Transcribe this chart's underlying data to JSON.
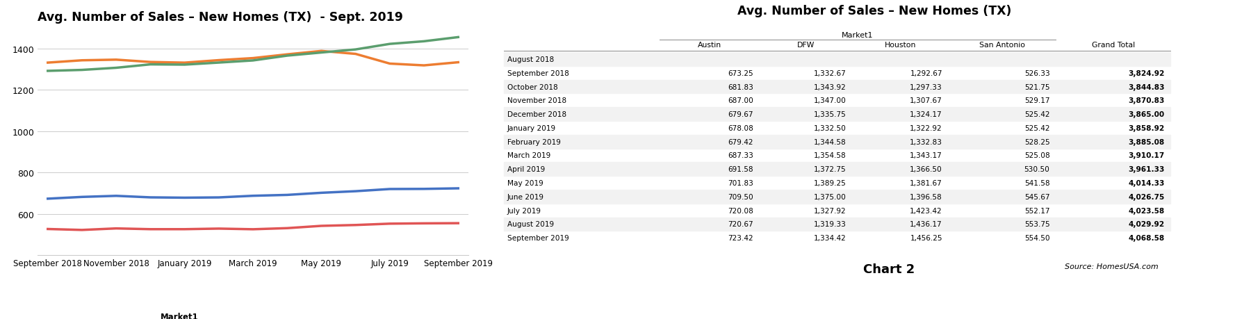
{
  "chart_title": "Avg. Number of Sales – New Homes (TX)  - Sept. 2019",
  "table_title": "Avg. Number of Sales – New Homes (TX)",
  "months": [
    "September 2018",
    "October 2018",
    "November 2018",
    "December 2018",
    "January 2019",
    "February 2019",
    "March 2019",
    "April 2019",
    "May 2019",
    "June 2019",
    "July 2019",
    "August 2019",
    "September 2019"
  ],
  "x_tick_labels": [
    "September 2018",
    "November 2018",
    "January 2019",
    "March 2019",
    "May 2019",
    "July 2019",
    "September 2019"
  ],
  "austin": [
    673.25,
    681.83,
    687.0,
    679.67,
    678.08,
    679.42,
    687.33,
    691.58,
    701.83,
    709.5,
    720.08,
    720.67,
    723.42
  ],
  "dfw": [
    1332.67,
    1343.92,
    1347.0,
    1335.75,
    1332.5,
    1344.58,
    1354.58,
    1372.75,
    1389.25,
    1375.0,
    1327.92,
    1319.33,
    1334.42
  ],
  "houston": [
    1292.67,
    1297.33,
    1307.67,
    1324.17,
    1322.92,
    1332.83,
    1343.17,
    1366.5,
    1381.67,
    1396.58,
    1423.42,
    1436.17,
    1456.25
  ],
  "san_antonio": [
    526.33,
    521.75,
    529.17,
    525.42,
    525.42,
    528.25,
    525.08,
    530.5,
    541.58,
    545.67,
    552.17,
    553.75,
    554.5
  ],
  "austin_color": "#4472C4",
  "dfw_color": "#ED7D31",
  "houston_color": "#5B9E6E",
  "san_antonio_color": "#E05555",
  "ylim": [
    400,
    1500
  ],
  "yticks": [
    600,
    800,
    1000,
    1200,
    1400
  ],
  "line_width": 2.5,
  "table_rows": [
    [
      "August 2018",
      "",
      "",
      "",
      "",
      ""
    ],
    [
      "September 2018",
      "673.25",
      "1,332.67",
      "1,292.67",
      "526.33",
      "3,824.92"
    ],
    [
      "October 2018",
      "681.83",
      "1,343.92",
      "1,297.33",
      "521.75",
      "3,844.83"
    ],
    [
      "November 2018",
      "687.00",
      "1,347.00",
      "1,307.67",
      "529.17",
      "3,870.83"
    ],
    [
      "December 2018",
      "679.67",
      "1,335.75",
      "1,324.17",
      "525.42",
      "3,865.00"
    ],
    [
      "January 2019",
      "678.08",
      "1,332.50",
      "1,322.92",
      "525.42",
      "3,858.92"
    ],
    [
      "February 2019",
      "679.42",
      "1,344.58",
      "1,332.83",
      "528.25",
      "3,885.08"
    ],
    [
      "March 2019",
      "687.33",
      "1,354.58",
      "1,343.17",
      "525.08",
      "3,910.17"
    ],
    [
      "April 2019",
      "691.58",
      "1,372.75",
      "1,366.50",
      "530.50",
      "3,961.33"
    ],
    [
      "May 2019",
      "701.83",
      "1,389.25",
      "1,381.67",
      "541.58",
      "4,014.33"
    ],
    [
      "June 2019",
      "709.50",
      "1,375.00",
      "1,396.58",
      "545.67",
      "4,026.75"
    ],
    [
      "July 2019",
      "720.08",
      "1,327.92",
      "1,423.42",
      "552.17",
      "4,023.58"
    ],
    [
      "August 2019",
      "720.67",
      "1,319.33",
      "1,436.17",
      "553.75",
      "4,029.92"
    ],
    [
      "September 2019",
      "723.42",
      "1,334.42",
      "1,456.25",
      "554.50",
      "4,068.58"
    ]
  ],
  "col_headers": [
    "",
    "Austin",
    "DFW",
    "Houston",
    "San Antonio",
    "Grand Total"
  ],
  "col_widths": [
    0.21,
    0.135,
    0.125,
    0.13,
    0.145,
    0.155
  ],
  "source_text": "Source: HomesUSA.com",
  "chart2_text": "Chart 2",
  "bg_color": "#FFFFFF"
}
